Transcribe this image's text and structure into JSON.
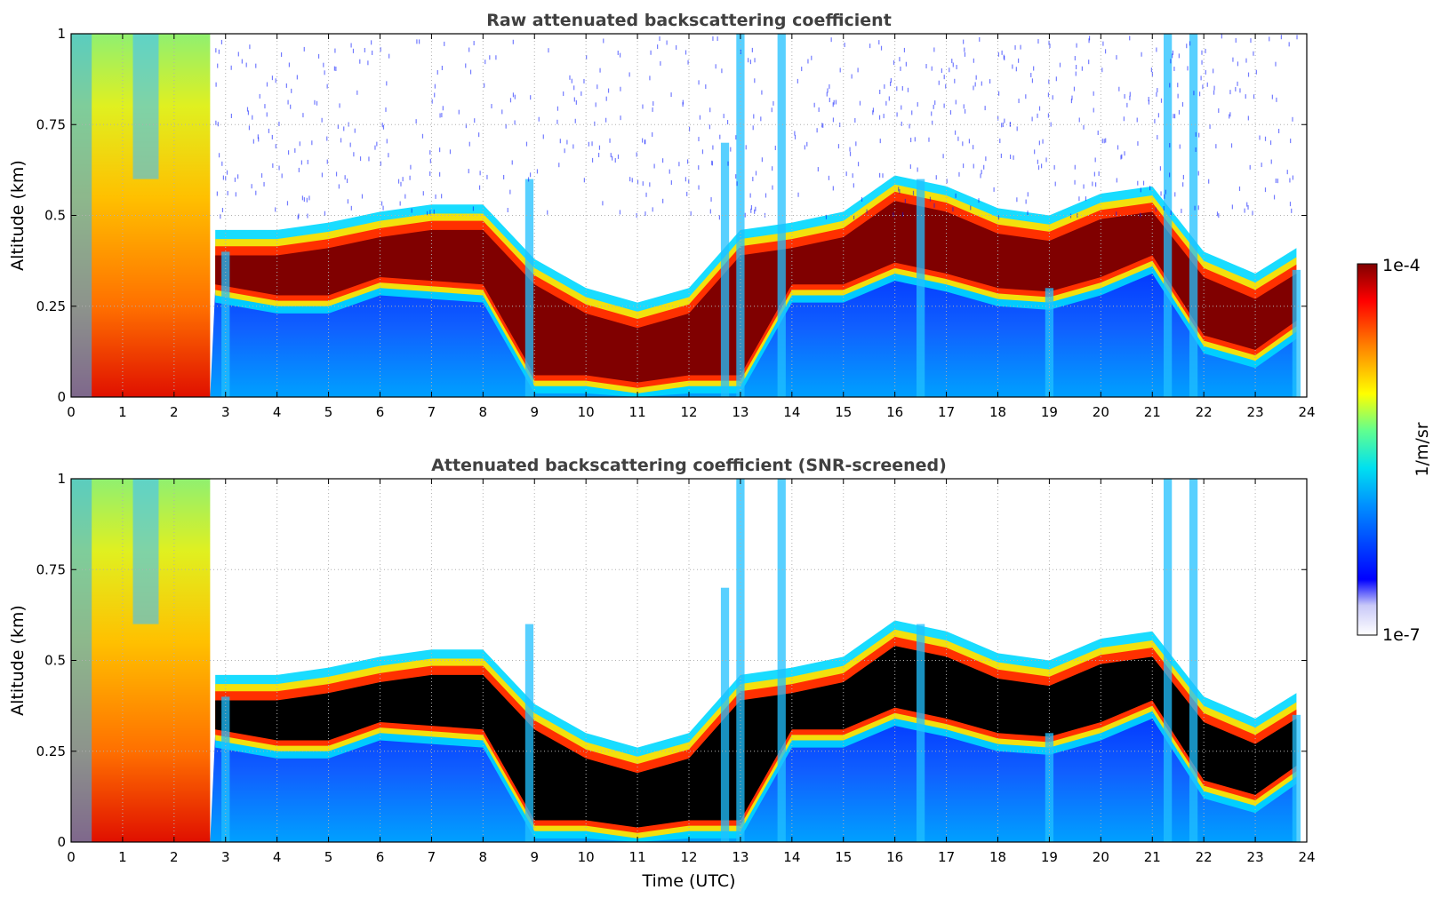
{
  "chart_data": [
    {
      "type": "heatmap",
      "title": "Raw attenuated backscattering coefficient",
      "ylabel": "Altitude (km)",
      "xlabel": "",
      "xlim": [
        0,
        24
      ],
      "ylim": [
        0,
        1
      ],
      "x_ticks": [
        "0",
        "1",
        "2",
        "3",
        "4",
        "5",
        "6",
        "7",
        "8",
        "9",
        "10",
        "11",
        "12",
        "13",
        "14",
        "15",
        "16",
        "17",
        "18",
        "19",
        "20",
        "21",
        "22",
        "23",
        "24"
      ],
      "y_ticks": [
        "0",
        "0.25",
        "0.5",
        "0.75",
        "1"
      ],
      "grid": true,
      "screened": false,
      "colorscale": "jet",
      "log_scale": true,
      "cloud_layer_base_km": [
        [
          2.8,
          0.3
        ],
        [
          4,
          0.27
        ],
        [
          5,
          0.27
        ],
        [
          6,
          0.32
        ],
        [
          7,
          0.31
        ],
        [
          8,
          0.3
        ],
        [
          9,
          0.05
        ],
        [
          10,
          0.05
        ],
        [
          11,
          0.03
        ],
        [
          12,
          0.05
        ],
        [
          13,
          0.05
        ],
        [
          14,
          0.3
        ],
        [
          15,
          0.3
        ],
        [
          16,
          0.36
        ],
        [
          17,
          0.33
        ],
        [
          18,
          0.29
        ],
        [
          19,
          0.28
        ],
        [
          20,
          0.32
        ],
        [
          21,
          0.38
        ],
        [
          22,
          0.16
        ],
        [
          23,
          0.12
        ],
        [
          23.8,
          0.2
        ]
      ],
      "cloud_layer_top_km": [
        [
          2.8,
          0.4
        ],
        [
          4,
          0.4
        ],
        [
          5,
          0.42
        ],
        [
          6,
          0.45
        ],
        [
          7,
          0.47
        ],
        [
          8,
          0.47
        ],
        [
          9,
          0.32
        ],
        [
          10,
          0.24
        ],
        [
          11,
          0.2
        ],
        [
          12,
          0.24
        ],
        [
          13,
          0.4
        ],
        [
          14,
          0.42
        ],
        [
          15,
          0.45
        ],
        [
          16,
          0.55
        ],
        [
          17,
          0.52
        ],
        [
          18,
          0.46
        ],
        [
          19,
          0.44
        ],
        [
          20,
          0.5
        ],
        [
          21,
          0.52
        ],
        [
          22,
          0.34
        ],
        [
          23,
          0.28
        ],
        [
          23.8,
          0.35
        ]
      ]
    },
    {
      "type": "heatmap",
      "title": "Attenuated backscattering coefficient (SNR-screened)",
      "ylabel": "Altitude (km)",
      "xlabel": "Time (UTC)",
      "xlim": [
        0,
        24
      ],
      "ylim": [
        0,
        1
      ],
      "x_ticks": [
        "0",
        "1",
        "2",
        "3",
        "4",
        "5",
        "6",
        "7",
        "8",
        "9",
        "10",
        "11",
        "12",
        "13",
        "14",
        "15",
        "16",
        "17",
        "18",
        "19",
        "20",
        "21",
        "22",
        "23",
        "24"
      ],
      "y_ticks": [
        "0",
        "0.25",
        "0.5",
        "0.75",
        "1"
      ],
      "grid": true,
      "screened": true,
      "colorscale": "jet",
      "log_scale": true
    }
  ],
  "colorbar": {
    "label": "1/m/sr",
    "max_label": "1e-4",
    "min_label": "1e-7"
  }
}
